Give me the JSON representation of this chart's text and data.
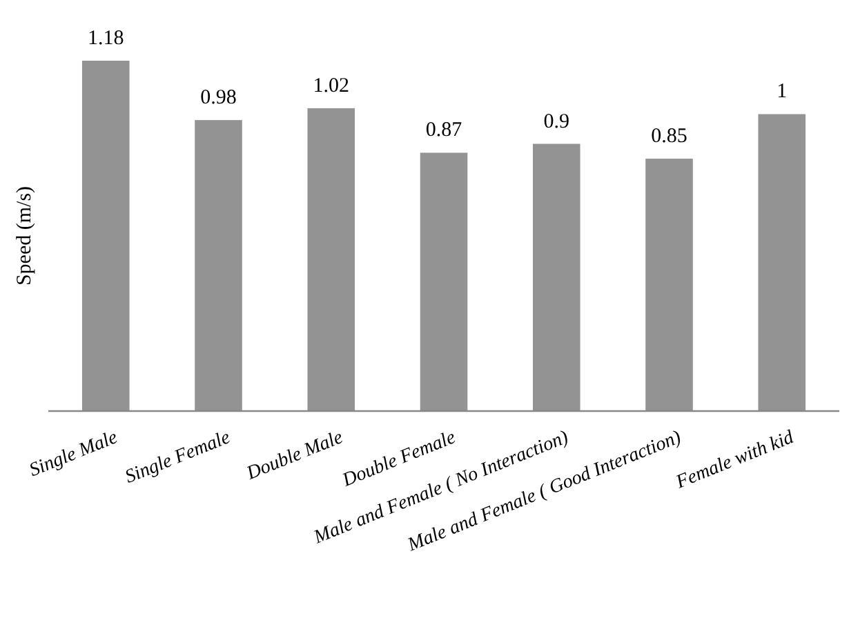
{
  "chart_data": {
    "type": "bar",
    "ylabel": "Speed (m/s)",
    "categories": [
      "Single Male",
      "Single Female",
      "Double Male",
      "Double Female",
      "Male and Female ( No Interaction)",
      "Male and Female ( Good Interaction)",
      "Female with kid"
    ],
    "values": [
      1.18,
      0.98,
      1.02,
      0.87,
      0.9,
      0.85,
      1
    ],
    "color": "#939393",
    "data_labels": true
  }
}
